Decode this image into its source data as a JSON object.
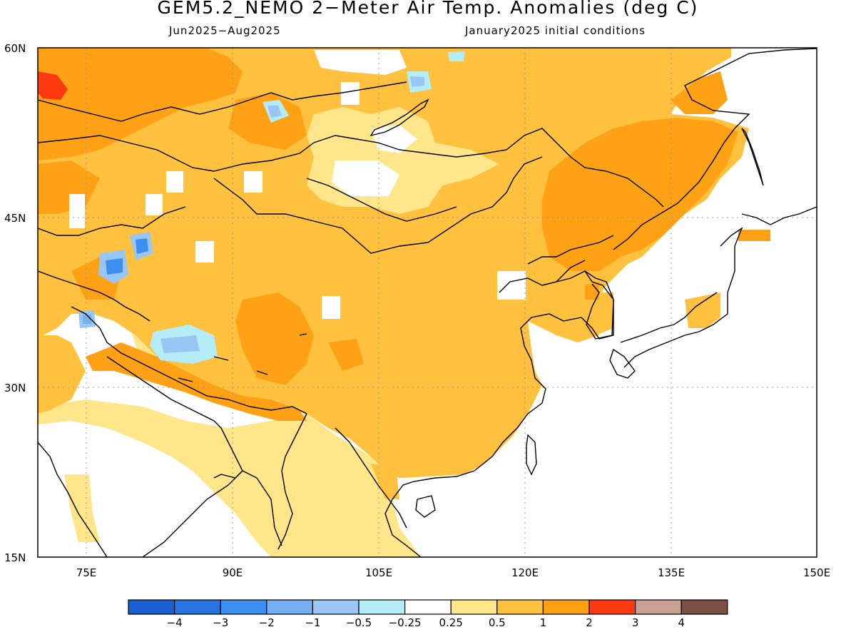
{
  "title": "GEM5.2_NEMO 2−Meter Air Temp. Anomalies (deg C)",
  "subtitle_left": "Jun2025−Aug2025",
  "subtitle_right": "January2025 initial conditions",
  "map": {
    "lat_range": [
      15,
      60
    ],
    "lon_range": [
      70,
      150
    ],
    "lat_ticks": [
      {
        "value": 60,
        "label": "60N"
      },
      {
        "value": 45,
        "label": "45N"
      },
      {
        "value": 30,
        "label": "30N"
      },
      {
        "value": 15,
        "label": "15N"
      }
    ],
    "lon_ticks": [
      {
        "value": 75,
        "label": "75E"
      },
      {
        "value": 90,
        "label": "90E"
      },
      {
        "value": 105,
        "label": "105E"
      },
      {
        "value": 120,
        "label": "120E"
      },
      {
        "value": 135,
        "label": "135E"
      },
      {
        "value": 150,
        "label": "150E"
      }
    ],
    "gridlines": "dotted"
  },
  "colorbar": {
    "colors": [
      "#1a5fcf",
      "#2a72e0",
      "#3c8ef0",
      "#74b0f2",
      "#98c7f6",
      "#b4ecf8",
      "#ffffff",
      "#ffe68a",
      "#ffc13e",
      "#ffa115",
      "#ff3a10",
      "#c9a193",
      "#7b5146"
    ],
    "labels": [
      "−4",
      "−3",
      "−2",
      "−1",
      "−0.5",
      "−0.25",
      "0.25",
      "0.5",
      "1",
      "2",
      "3",
      "4"
    ]
  },
  "regions": {
    "dominant_anomaly": "0.5 to 1",
    "warm_core_northeast_china": "1 to 2",
    "warm_core_siberia": "1 to 2",
    "hot_spot_west_siberia": "2 to 3",
    "cool_spots_central_asia": "−1 to −2",
    "neutral_ocean": "−0.25 to 0.25"
  }
}
